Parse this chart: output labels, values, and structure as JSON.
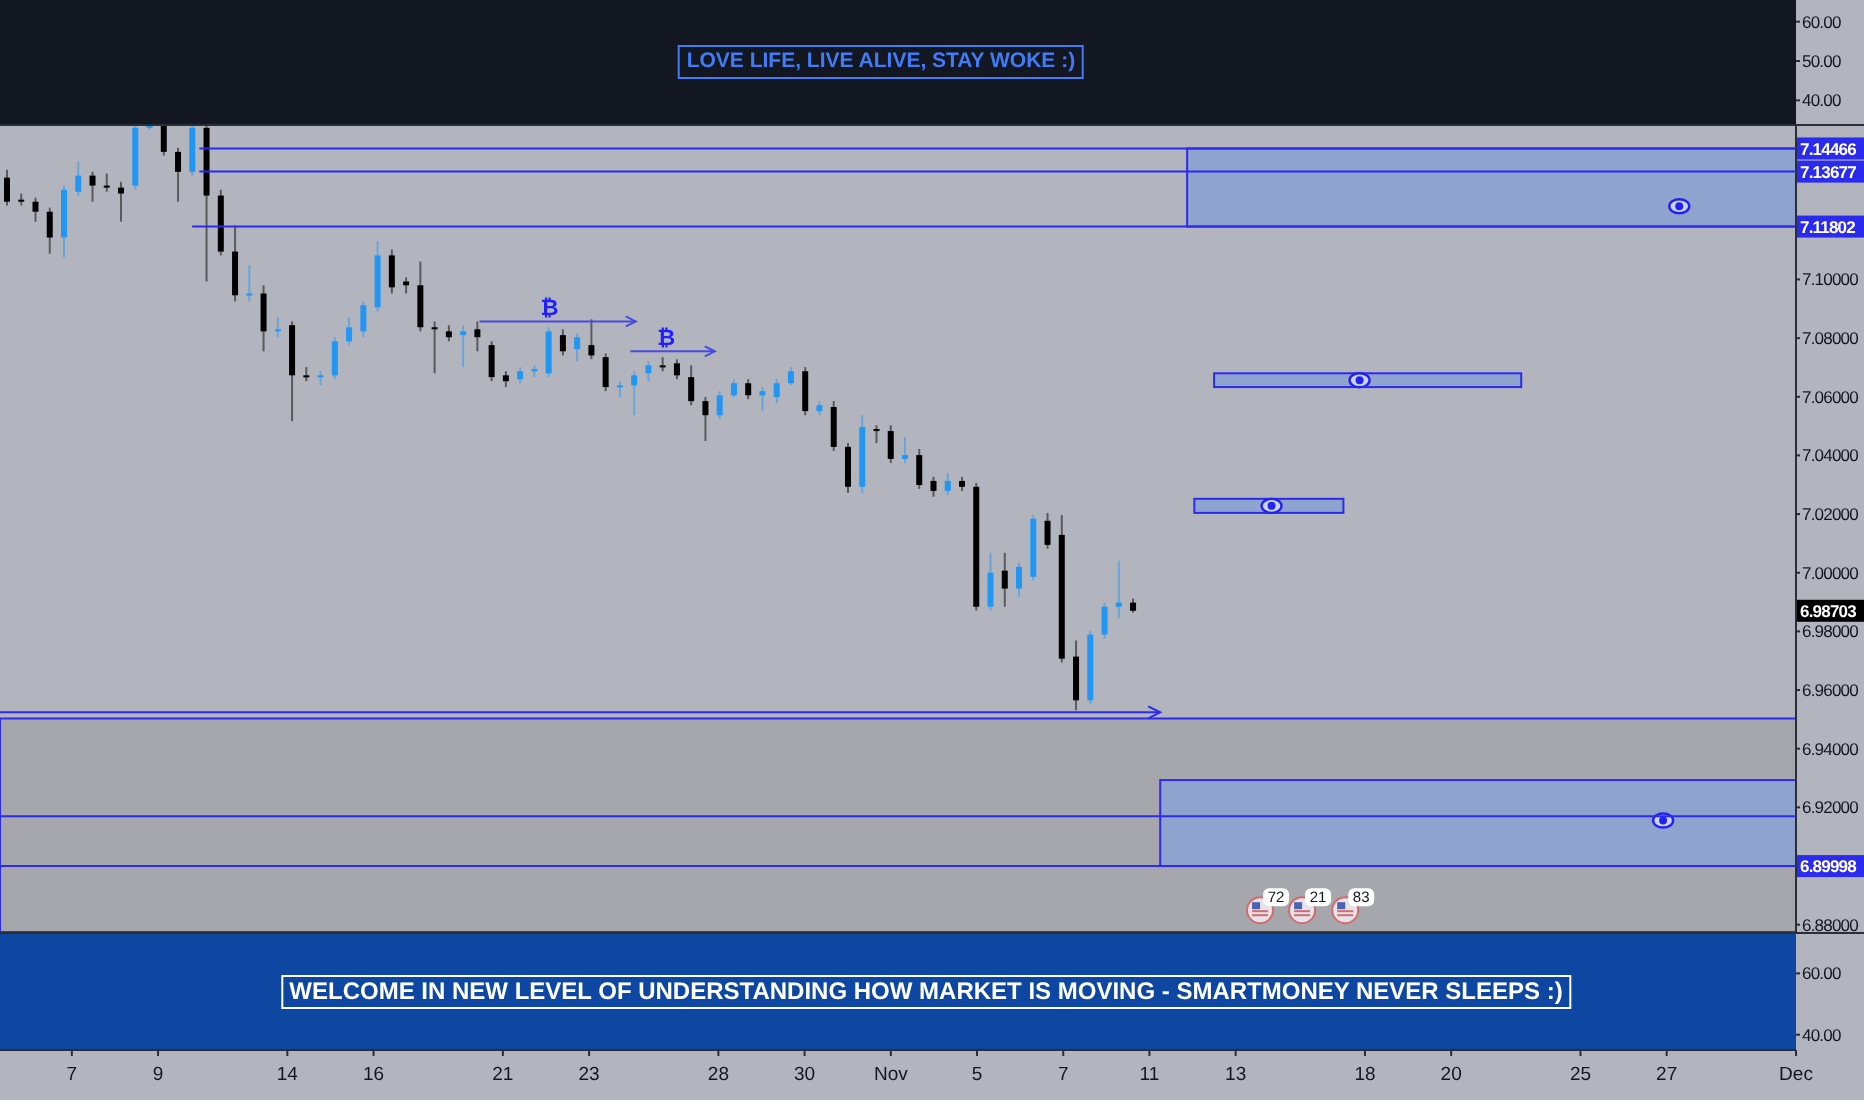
{
  "chart_data": [
    {
      "type": "line",
      "categories": [
        null,
        null,
        null,
        null,
        null,
        null,
        null,
        null,
        null,
        null,
        null,
        null,
        null,
        null,
        null,
        null,
        null,
        null,
        null,
        null,
        null,
        null,
        null,
        null,
        null,
        null,
        null,
        null,
        null,
        null,
        null,
        null,
        null,
        null,
        null,
        null,
        null,
        null,
        null,
        null,
        null,
        null,
        null,
        null,
        null,
        null,
        null,
        null,
        null,
        null,
        null,
        null,
        null,
        null,
        null,
        null,
        null,
        null,
        null,
        null,
        null,
        null,
        null,
        null,
        null,
        null,
        null,
        null,
        null,
        null,
        null,
        null,
        null,
        null,
        null,
        null,
        null,
        null,
        null,
        null,
        null,
        null,
        null,
        null,
        null,
        null,
        null,
        null,
        null,
        null,
        null,
        null,
        null,
        null,
        null,
        null,
        null,
        null,
        null,
        null,
        null,
        null,
        null,
        null,
        null,
        null,
        null,
        null,
        null,
        null,
        null,
        null,
        null,
        null,
        null,
        null,
        null,
        null,
        null,
        null,
        null,
        null,
        null,
        null,
        null,
        null
      ],
      "ylim": [
        34,
        65.5
      ],
      "yticks": [
        {
          "value": 60,
          "label": "60.00"
        },
        {
          "value": 50,
          "label": "50.00"
        },
        {
          "value": 40,
          "label": "40.00"
        }
      ],
      "tick_labels": "y",
      "bands": [
        {
          "axis": "y",
          "from": 34,
          "to": 65.5,
          "color": "#131722",
          "label": "LOVE LIFE, LIVE ALIVE, STAY WOKE :)"
        }
      ]
    },
    {
      "type": "candlestick",
      "categories": [
        null,
        null,
        null,
        null,
        null,
        null,
        null,
        null,
        null,
        null,
        null,
        null,
        null,
        null,
        null,
        null,
        null,
        null,
        null,
        null,
        null,
        null,
        null,
        null,
        null,
        null,
        null,
        null,
        null,
        null,
        null,
        null,
        null,
        null,
        null,
        null,
        null,
        null,
        null,
        null,
        null,
        null,
        null,
        null,
        null,
        null,
        null,
        null,
        null,
        null,
        null,
        null,
        null,
        null,
        null,
        null,
        null,
        null,
        null,
        null,
        null,
        null,
        null,
        null,
        null,
        null,
        null,
        null,
        null,
        null,
        null,
        null,
        null,
        null,
        null,
        null,
        null,
        null,
        null,
        null,
        null,
        null,
        null,
        null,
        null,
        null,
        null,
        null,
        null,
        null,
        null,
        null,
        null,
        null,
        null,
        null,
        null,
        null,
        null,
        null,
        null,
        null,
        null,
        null,
        null,
        null,
        null,
        null,
        null,
        null,
        null,
        null,
        null,
        null,
        null,
        null,
        null,
        null,
        null,
        null,
        null,
        null,
        null,
        null,
        null,
        null
      ],
      "ohlc": [
        [
          7.1347,
          7.1374,
          7.1252,
          7.1265
        ],
        [
          7.1272,
          7.1293,
          7.1252,
          7.1265
        ],
        [
          7.1265,
          7.1279,
          7.1197,
          7.1231
        ],
        [
          7.1231,
          7.1245,
          7.1088,
          7.1143
        ],
        [
          7.1143,
          7.132,
          7.1075,
          7.1306
        ],
        [
          7.1299,
          7.1401,
          7.1286,
          7.1354
        ],
        [
          7.1354,
          7.1367,
          7.1265,
          7.132
        ],
        [
          7.132,
          7.1361,
          7.1299,
          7.1313
        ],
        [
          7.1313,
          7.1333,
          7.1197,
          7.1293
        ],
        [
          7.132,
          7.1524,
          7.1306,
          7.1517
        ],
        [
          7.1517,
          7.1524,
          7.151,
          7.1524
        ],
        [
          7.1524,
          7.1524,
          7.1422,
          7.1435
        ],
        [
          7.1435,
          7.1449,
          7.1265,
          7.1367
        ],
        [
          7.1367,
          7.1524,
          7.1354,
          7.1517
        ],
        [
          7.1517,
          7.1524,
          7.0993,
          7.1286
        ],
        [
          7.1286,
          7.1306,
          7.1082,
          7.1095
        ],
        [
          7.1095,
          7.1184,
          7.0925,
          7.0946
        ],
        [
          7.0946,
          7.1048,
          7.0925,
          7.0952
        ],
        [
          7.0952,
          7.098,
          7.0755,
          7.0823
        ],
        [
          7.0823,
          7.0871,
          7.0803,
          7.083
        ],
        [
          7.0844,
          7.0857,
          7.0517,
          7.0673
        ],
        [
          7.0673,
          7.0701,
          7.0653,
          7.0667
        ],
        [
          7.0667,
          7.0687,
          7.0639,
          7.0673
        ],
        [
          7.0673,
          7.0803,
          7.066,
          7.0789
        ],
        [
          7.0789,
          7.0871,
          7.0776,
          7.0837
        ],
        [
          7.0823,
          7.0925,
          7.0803,
          7.0912
        ],
        [
          7.0905,
          7.1129,
          7.0891,
          7.1082
        ],
        [
          7.1082,
          7.1102,
          7.0952,
          7.0973
        ],
        [
          7.0993,
          7.1007,
          7.0952,
          7.098
        ],
        [
          7.098,
          7.1061,
          7.0823,
          7.0837
        ],
        [
          7.0837,
          7.0857,
          7.068,
          7.083
        ],
        [
          7.0823,
          7.0844,
          7.0789,
          7.0803
        ],
        [
          7.081,
          7.0844,
          7.0701,
          7.0823
        ],
        [
          7.083,
          7.0857,
          7.0755,
          7.0803
        ],
        [
          7.0776,
          7.0789,
          7.0653,
          7.0667
        ],
        [
          7.0673,
          7.0687,
          7.0633,
          7.0653
        ],
        [
          7.066,
          7.0701,
          7.0646,
          7.0687
        ],
        [
          7.0687,
          7.0707,
          7.0667,
          7.0694
        ],
        [
          7.068,
          7.0837,
          7.0667,
          7.0823
        ],
        [
          7.081,
          7.083,
          7.0741,
          7.0755
        ],
        [
          7.0762,
          7.0816,
          7.0721,
          7.0803
        ],
        [
          7.0776,
          7.0864,
          7.0728,
          7.0741
        ],
        [
          7.0735,
          7.0748,
          7.0619,
          7.0633
        ],
        [
          7.0633,
          7.0653,
          7.0599,
          7.0639
        ],
        [
          7.0639,
          7.0687,
          7.0537,
          7.0673
        ],
        [
          7.068,
          7.0721,
          7.0653,
          7.0707
        ],
        [
          7.0707,
          7.0735,
          7.0687,
          7.0701
        ],
        [
          7.0714,
          7.0728,
          7.066,
          7.0673
        ],
        [
          7.0667,
          7.0707,
          7.0571,
          7.0585
        ],
        [
          7.0585,
          7.0599,
          7.0449,
          7.0537
        ],
        [
          7.0537,
          7.0619,
          7.0524,
          7.0605
        ],
        [
          7.0605,
          7.066,
          7.0599,
          7.0646
        ],
        [
          7.0646,
          7.066,
          7.0592,
          7.0605
        ],
        [
          7.0605,
          7.0633,
          7.0551,
          7.0619
        ],
        [
          7.0599,
          7.066,
          7.0578,
          7.0646
        ],
        [
          7.0646,
          7.0701,
          7.0639,
          7.0687
        ],
        [
          7.0687,
          7.0701,
          7.0537,
          7.0551
        ],
        [
          7.0551,
          7.0585,
          7.0537,
          7.0571
        ],
        [
          7.0565,
          7.0585,
          7.0415,
          7.0429
        ],
        [
          7.0429,
          7.0442,
          7.0272,
          7.0293
        ],
        [
          7.0293,
          7.0537,
          7.0272,
          7.0497
        ],
        [
          7.049,
          7.0503,
          7.0442,
          7.0483
        ],
        [
          7.0483,
          7.0503,
          7.0374,
          7.0388
        ],
        [
          7.0388,
          7.0463,
          7.0374,
          7.0401
        ],
        [
          7.0401,
          7.0422,
          7.0286,
          7.0299
        ],
        [
          7.0313,
          7.0327,
          7.0259,
          7.0279
        ],
        [
          7.0279,
          7.034,
          7.0265,
          7.0313
        ],
        [
          7.0313,
          7.0327,
          7.0279,
          7.0293
        ],
        [
          7.0293,
          7.0306,
          6.9871,
          6.9884
        ],
        [
          6.9884,
          7.0068,
          6.9871,
          7.0
        ],
        [
          7.0007,
          7.0068,
          6.9884,
          6.9946
        ],
        [
          6.9946,
          7.0034,
          6.9918,
          7.002
        ],
        [
          6.9986,
          7.0197,
          6.9973,
          7.0184
        ],
        [
          7.0177,
          7.0204,
          7.0082,
          7.0095
        ],
        [
          7.0129,
          7.0197,
          6.9694,
          6.9707
        ],
        [
          6.9714,
          6.9769,
          6.9531,
          6.9565
        ],
        [
          6.9565,
          6.9803,
          6.9551,
          6.9789
        ],
        [
          6.9789,
          6.9898,
          6.9776,
          6.9884
        ],
        [
          6.9884,
          7.0041,
          6.9844,
          6.9898
        ],
        [
          6.9898,
          6.9912,
          6.9864,
          6.98703
        ],
        null,
        null,
        null,
        null,
        null,
        null,
        null,
        null,
        null,
        null,
        null,
        null,
        null,
        null,
        null,
        null,
        null,
        null,
        null,
        null,
        null,
        null,
        null,
        null,
        null,
        null,
        null,
        null,
        null,
        null,
        null,
        null,
        null,
        null,
        null,
        null,
        null,
        null,
        null,
        null,
        null,
        null,
        null,
        null,
        null,
        null
      ],
      "colors": [
        "#000000",
        "#000000",
        "#000000",
        "#000000",
        "#2196f3",
        "#2196f3",
        "#000000",
        "#000000",
        "#000000",
        "#2196f3",
        "#2196f3",
        "#000000",
        "#000000",
        "#2196f3",
        "#000000",
        "#000000",
        "#000000",
        "#2196f3",
        "#000000",
        "#2196f3",
        "#000000",
        "#000000",
        "#2196f3",
        "#2196f3",
        "#2196f3",
        "#2196f3",
        "#2196f3",
        "#000000",
        "#000000",
        "#000000",
        "#000000",
        "#000000",
        "#2196f3",
        "#000000",
        "#000000",
        "#000000",
        "#2196f3",
        "#2196f3",
        "#2196f3",
        "#000000",
        "#2196f3",
        "#000000",
        "#000000",
        "#2196f3",
        "#2196f3",
        "#2196f3",
        "#000000",
        "#000000",
        "#000000",
        "#000000",
        "#2196f3",
        "#2196f3",
        "#000000",
        "#2196f3",
        "#2196f3",
        "#2196f3",
        "#000000",
        "#2196f3",
        "#000000",
        "#000000",
        "#2196f3",
        "#000000",
        "#000000",
        "#2196f3",
        "#000000",
        "#000000",
        "#2196f3",
        "#000000",
        "#000000",
        "#2196f3",
        "#000000",
        "#2196f3",
        "#2196f3",
        "#000000",
        "#000000",
        "#000000",
        "#2196f3",
        "#2196f3",
        "#2196f3",
        "#000000",
        null,
        null,
        null,
        null,
        null,
        null,
        null,
        null,
        null,
        null,
        null,
        null,
        null,
        null,
        null,
        null,
        null,
        null,
        null,
        null,
        null,
        null,
        null,
        null,
        null,
        null,
        null,
        null,
        null,
        null,
        null,
        null,
        null,
        null,
        null,
        null,
        null,
        null,
        null,
        null,
        null,
        null,
        null,
        null,
        null,
        null
      ],
      "ylim": [
        6.8775,
        7.153
      ],
      "yticks": [
        {
          "value": 6.88,
          "label": "6.88000"
        },
        {
          "value": 6.92,
          "label": "6.92000"
        },
        {
          "value": 6.94,
          "label": "6.94000"
        },
        {
          "value": 6.96,
          "label": "6.96000"
        },
        {
          "value": 6.98,
          "label": "6.98000"
        },
        {
          "value": 7.0,
          "label": "7.00000"
        },
        {
          "value": 7.02,
          "label": "7.02000"
        },
        {
          "value": 7.04,
          "label": "7.04000"
        },
        {
          "value": 7.06,
          "label": "7.06000"
        },
        {
          "value": 7.08,
          "label": "7.08000"
        },
        {
          "value": 7.1,
          "label": "7.10000"
        }
      ],
      "tick_labels": "y",
      "bands": [
        {
          "axis": "y",
          "from": 6.8775,
          "to": 6.9503,
          "color": "#a5a7ad"
        },
        {
          "axis": "y",
          "from": 7.11802,
          "to": 7.14466,
          "color": "#8fa3cf"
        },
        {
          "axis": "y",
          "from": 7.0633,
          "to": 7.068,
          "color": "#8fa3cf"
        },
        {
          "axis": "y",
          "from": 7.0204,
          "to": 7.0252,
          "color": "#8fa3cf"
        },
        {
          "axis": "y",
          "from": 6.89998,
          "to": 6.9293,
          "color": "#8fa3cf"
        }
      ],
      "ref_lines": [
        {
          "axis": "y",
          "value": 7.14466,
          "label": "7.14466",
          "color": "#2b2bef"
        },
        {
          "axis": "y",
          "value": 7.13677,
          "label": "7.13677",
          "color": "#2b2bef"
        },
        {
          "axis": "y",
          "value": 7.11802,
          "label": "7.11802",
          "color": "#2b2bef"
        },
        {
          "axis": "y",
          "value": 6.917,
          "label": null,
          "color": "#2b2bef"
        },
        {
          "axis": "y",
          "value": 6.89998,
          "label": "6.89998",
          "color": "#2b2bef"
        },
        {
          "axis": "y",
          "value": 6.9524,
          "label": null,
          "color": "#2b2bef"
        }
      ],
      "annotations": [
        {
          "text": "₿",
          "y": 7.0857
        },
        {
          "text": "₿",
          "y": 7.0755
        },
        "6.98703",
        "72",
        "21",
        "83"
      ]
    },
    {
      "type": "line",
      "categories": [
        null,
        null,
        null,
        null,
        null,
        "7",
        null,
        null,
        null,
        null,
        null,
        "9",
        null,
        null,
        null,
        null,
        null,
        null,
        null,
        null,
        "14",
        null,
        null,
        null,
        null,
        null,
        "16",
        null,
        null,
        null,
        null,
        null,
        null,
        null,
        null,
        "21",
        null,
        null,
        null,
        null,
        null,
        "23",
        null,
        null,
        null,
        null,
        null,
        null,
        null,
        null,
        "28",
        null,
        null,
        null,
        null,
        null,
        "30",
        null,
        null,
        null,
        null,
        null,
        "Nov",
        null,
        null,
        null,
        null,
        null,
        "5",
        null,
        null,
        null,
        null,
        null,
        "7",
        null,
        null,
        null,
        null,
        null,
        "11",
        null,
        null,
        null,
        null,
        null,
        "13",
        null,
        null,
        null,
        null,
        null,
        null,
        null,
        null,
        "18",
        null,
        null,
        null,
        null,
        null,
        "20",
        null,
        null,
        null,
        null,
        null,
        null,
        null,
        null,
        "25",
        null,
        null,
        null,
        null,
        null,
        "27",
        null,
        null,
        null,
        null,
        null,
        null,
        null,
        null,
        "Dec"
      ],
      "ylim": [
        35,
        73.5
      ],
      "yticks": [
        {
          "value": 60,
          "label": "60.00"
        },
        {
          "value": 40,
          "label": "40.00"
        }
      ],
      "bands": [
        {
          "axis": "y",
          "from": 35,
          "to": 73.5,
          "color": "#0d47a1",
          "label": "WELCOME IN NEW LEVEL OF UNDERSTANDING HOW MARKET IS MOVING - SMARTMONEY NEVER SLEEPS :)"
        }
      ]
    }
  ]
}
